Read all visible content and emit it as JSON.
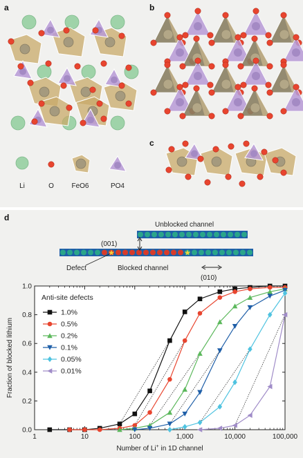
{
  "panel_labels": {
    "a": "a",
    "b": "b",
    "c": "c",
    "d": "d"
  },
  "legend_items": [
    {
      "label": "Li",
      "color": "#9fd3a9"
    },
    {
      "label": "O",
      "color": "#e8452f"
    },
    {
      "label": "FeO6",
      "color": "#c8a96a"
    },
    {
      "label": "PO4",
      "color": "#b79ad6"
    }
  ],
  "channel_diagram": {
    "unblocked_label": "Unblocked channel",
    "blocked_label": "Blocked channel",
    "defect_label": "Defect",
    "direction_001": "(001)",
    "direction_010": "(010)"
  },
  "chart_data": {
    "type": "line",
    "xlabel": "Number of Li+ in 1D channel",
    "ylabel": "Fraction of blocked lithium",
    "xscale": "log",
    "xlim": [
      1,
      100000
    ],
    "ylim": [
      0,
      1.0
    ],
    "x_ticks": [
      "1",
      "10",
      "100",
      "1,000",
      "10,000",
      "100,000"
    ],
    "y_ticks": [
      "0.0",
      "0.2",
      "0.4",
      "0.6",
      "0.8",
      "1.0"
    ],
    "legend_title": "Anti-site defects",
    "legend_placement": "top-left",
    "series": [
      {
        "name": "1.0%",
        "color": "#111111",
        "marker": "square",
        "x": [
          2,
          5,
          10,
          20,
          50,
          100,
          200,
          500,
          1000,
          2000,
          5000,
          10000,
          20000,
          50000,
          100000
        ],
        "y": [
          0,
          0,
          0,
          0.01,
          0.04,
          0.11,
          0.27,
          0.62,
          0.82,
          0.91,
          0.96,
          0.98,
          0.99,
          1.0,
          1.0
        ]
      },
      {
        "name": "0.5%",
        "color": "#e8452f",
        "marker": "circle",
        "x": [
          5,
          10,
          20,
          50,
          100,
          200,
          500,
          1000,
          2000,
          5000,
          10000,
          20000,
          50000,
          100000
        ],
        "y": [
          0,
          0,
          0,
          0.01,
          0.03,
          0.12,
          0.35,
          0.62,
          0.81,
          0.92,
          0.96,
          0.98,
          0.99,
          0.99
        ]
      },
      {
        "name": "0.2%",
        "color": "#5cb85c",
        "marker": "triangle-up",
        "x": [
          50,
          100,
          200,
          500,
          1000,
          2000,
          5000,
          10000,
          20000,
          50000,
          100000
        ],
        "y": [
          0,
          0.01,
          0.03,
          0.12,
          0.28,
          0.53,
          0.75,
          0.86,
          0.92,
          0.96,
          0.98
        ]
      },
      {
        "name": "0.1%",
        "color": "#1f5fa8",
        "marker": "triangle-down",
        "x": [
          100,
          200,
          500,
          1000,
          2000,
          5000,
          10000,
          20000,
          50000,
          100000
        ],
        "y": [
          0,
          0.01,
          0.04,
          0.11,
          0.26,
          0.55,
          0.72,
          0.85,
          0.93,
          0.97
        ]
      },
      {
        "name": "0.05%",
        "color": "#4fc3e0",
        "marker": "diamond",
        "x": [
          500,
          1000,
          2000,
          5000,
          10000,
          20000,
          50000,
          100000
        ],
        "y": [
          0,
          0.02,
          0.05,
          0.16,
          0.33,
          0.56,
          0.8,
          0.95
        ]
      },
      {
        "name": "0.01%",
        "color": "#a08cc8",
        "marker": "triangle-left",
        "x": [
          2000,
          5000,
          10000,
          20000,
          50000,
          100000
        ],
        "y": [
          0,
          0.01,
          0.03,
          0.1,
          0.3,
          0.8
        ]
      }
    ]
  }
}
